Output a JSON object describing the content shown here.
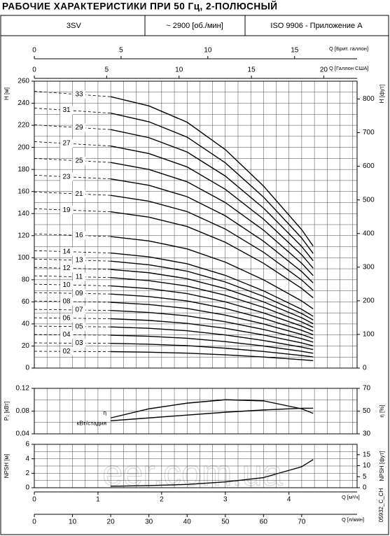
{
  "header": {
    "title": "РАБОЧИЕ ХАРАКТЕРИСТИКИ ПРИ 50 Гц, 2-ПОЛЮСНЫЙ",
    "cells": [
      "3SV",
      "~ 2900 [об./мин]",
      "ISO 9906 - Приложение А"
    ]
  },
  "chart_data": [
    {
      "type": "line",
      "y_label": "H [м]",
      "y2_label": "H [фут]",
      "ylim": [
        0,
        260
      ],
      "yticks": [
        0,
        20,
        40,
        60,
        80,
        100,
        120,
        140,
        160,
        180,
        200,
        220,
        240,
        260
      ],
      "y2lim": [
        0,
        853
      ],
      "y2ticks": [
        0,
        100,
        200,
        300,
        400,
        500,
        600,
        700,
        800
      ],
      "grid": true,
      "grid_y_step": 10,
      "color": "#000000",
      "dash_to_x": 20,
      "x": [
        0,
        20,
        30,
        40,
        50,
        60,
        70,
        73
      ],
      "series": [
        {
          "name": "02",
          "values": [
            15.2,
            14.9,
            14.4,
            13.5,
            12,
            10,
            7.6,
            6.7
          ]
        },
        {
          "name": "03",
          "values": [
            22.8,
            22.4,
            21.6,
            20.3,
            18,
            15,
            11.4,
            10.1
          ]
        },
        {
          "name": "04",
          "values": [
            30.4,
            29.8,
            28.8,
            27,
            24,
            20,
            15.2,
            13.4
          ]
        },
        {
          "name": "05",
          "values": [
            38,
            37.3,
            36,
            33.8,
            30,
            25,
            19,
            16.8
          ]
        },
        {
          "name": "06",
          "values": [
            45.6,
            44.7,
            43.2,
            40.5,
            36,
            30,
            22.8,
            20.1
          ]
        },
        {
          "name": "07",
          "values": [
            53.2,
            52.2,
            50.4,
            47.3,
            42,
            35,
            26.6,
            23.5
          ]
        },
        {
          "name": "08",
          "values": [
            60.8,
            59.6,
            57.6,
            54,
            48,
            40,
            30.4,
            26.8
          ]
        },
        {
          "name": "09",
          "values": [
            68.4,
            67.1,
            64.8,
            60.8,
            54,
            45,
            34.2,
            30.2
          ]
        },
        {
          "name": "10",
          "values": [
            76,
            74.5,
            72,
            67.5,
            60,
            50,
            38,
            33.5
          ]
        },
        {
          "name": "11",
          "values": [
            83.6,
            82,
            79.2,
            74.3,
            66,
            55,
            41.8,
            36.9
          ]
        },
        {
          "name": "12",
          "values": [
            91.2,
            89.4,
            86.4,
            81,
            72,
            60,
            45.6,
            40.2
          ]
        },
        {
          "name": "13",
          "values": [
            98.8,
            96.9,
            93.6,
            87.8,
            78,
            65,
            49.4,
            43.6
          ]
        },
        {
          "name": "14",
          "values": [
            106.4,
            104.3,
            100.8,
            94.5,
            84,
            70,
            53.2,
            46.9
          ]
        },
        {
          "name": "16",
          "values": [
            121.6,
            119.2,
            115.2,
            108,
            96,
            80,
            60.8,
            53.6
          ]
        },
        {
          "name": "19",
          "values": [
            144.4,
            141.6,
            136.8,
            128.3,
            114,
            95,
            72.2,
            63.7
          ]
        },
        {
          "name": "21",
          "values": [
            159.6,
            156.5,
            151.2,
            141.8,
            126,
            105,
            79.8,
            70.4
          ]
        },
        {
          "name": "23",
          "values": [
            174.8,
            171.4,
            165.6,
            155.3,
            138,
            115,
            87.4,
            77.1
          ]
        },
        {
          "name": "25",
          "values": [
            190,
            186.3,
            180,
            168.8,
            150,
            125,
            95,
            83.8
          ]
        },
        {
          "name": "27",
          "values": [
            205.2,
            201.2,
            194.4,
            182.3,
            162,
            135,
            102.6,
            90.5
          ]
        },
        {
          "name": "29",
          "values": [
            220.4,
            216.1,
            208.8,
            195.8,
            174,
            145,
            110.2,
            97.2
          ]
        },
        {
          "name": "31",
          "values": [
            235.6,
            231,
            223.2,
            209.3,
            186,
            155,
            117.8,
            103.9
          ]
        },
        {
          "name": "33",
          "values": [
            250.8,
            245.9,
            237.6,
            222.8,
            198,
            165,
            125.4,
            110.6
          ]
        }
      ]
    },
    {
      "type": "line",
      "y_label": "P₂ [кВт]",
      "y2_label": "η [%]",
      "ylim": [
        0.04,
        0.12
      ],
      "yticks": [
        0.04,
        0.08,
        0.12
      ],
      "y2lim": [
        30,
        70
      ],
      "y2ticks": [
        30,
        50,
        70
      ],
      "grid": true,
      "grid_y_step": 0.02,
      "color": "#000000",
      "x": [
        20,
        30,
        40,
        50,
        60,
        70,
        73
      ],
      "series": [
        {
          "name": "η",
          "axis": "y2",
          "values": [
            44,
            52,
            57,
            60,
            59,
            52,
            48
          ]
        },
        {
          "name": "кВт/стадия",
          "values": [
            0.063,
            0.068,
            0.073,
            0.078,
            0.082,
            0.085,
            0.085
          ]
        }
      ]
    },
    {
      "type": "line",
      "y_label": "NPSH [м]",
      "y2_label": "NPSH [фут]",
      "ylim": [
        0,
        6
      ],
      "yticks": [
        0,
        2,
        4,
        6
      ],
      "y2lim": [
        0,
        19.7
      ],
      "y2ticks": [
        0,
        5,
        10,
        15
      ],
      "grid": true,
      "grid_y_step": 1,
      "color": "#000000",
      "x": [
        20,
        30,
        40,
        50,
        60,
        70,
        73
      ],
      "series": [
        {
          "values": [
            0.2,
            0.3,
            0.45,
            0.8,
            1.4,
            2.9,
            3.9
          ]
        }
      ]
    }
  ],
  "x_axes": [
    {
      "label": "Q [Брит. галлон]",
      "xlim": [
        0,
        18.6
      ],
      "xticks": [
        0,
        5,
        10,
        15
      ]
    },
    {
      "label": "Q [Галлон США]",
      "xlim": [
        0,
        22.3
      ],
      "xticks": [
        0,
        5,
        10,
        15,
        20
      ]
    },
    {
      "label": "Q [м³/ч]",
      "xlim": [
        0,
        5.07
      ],
      "xticks": [
        0,
        1,
        2,
        3,
        4
      ],
      "grid_step": 0.2
    },
    {
      "label": "Q [л/мин]",
      "xlim": [
        0,
        84.5
      ],
      "xticks": [
        0,
        10,
        20,
        30,
        40,
        50,
        60,
        70
      ]
    }
  ],
  "footer_code": "05932_C_CH",
  "watermark": "eer.com.ua"
}
